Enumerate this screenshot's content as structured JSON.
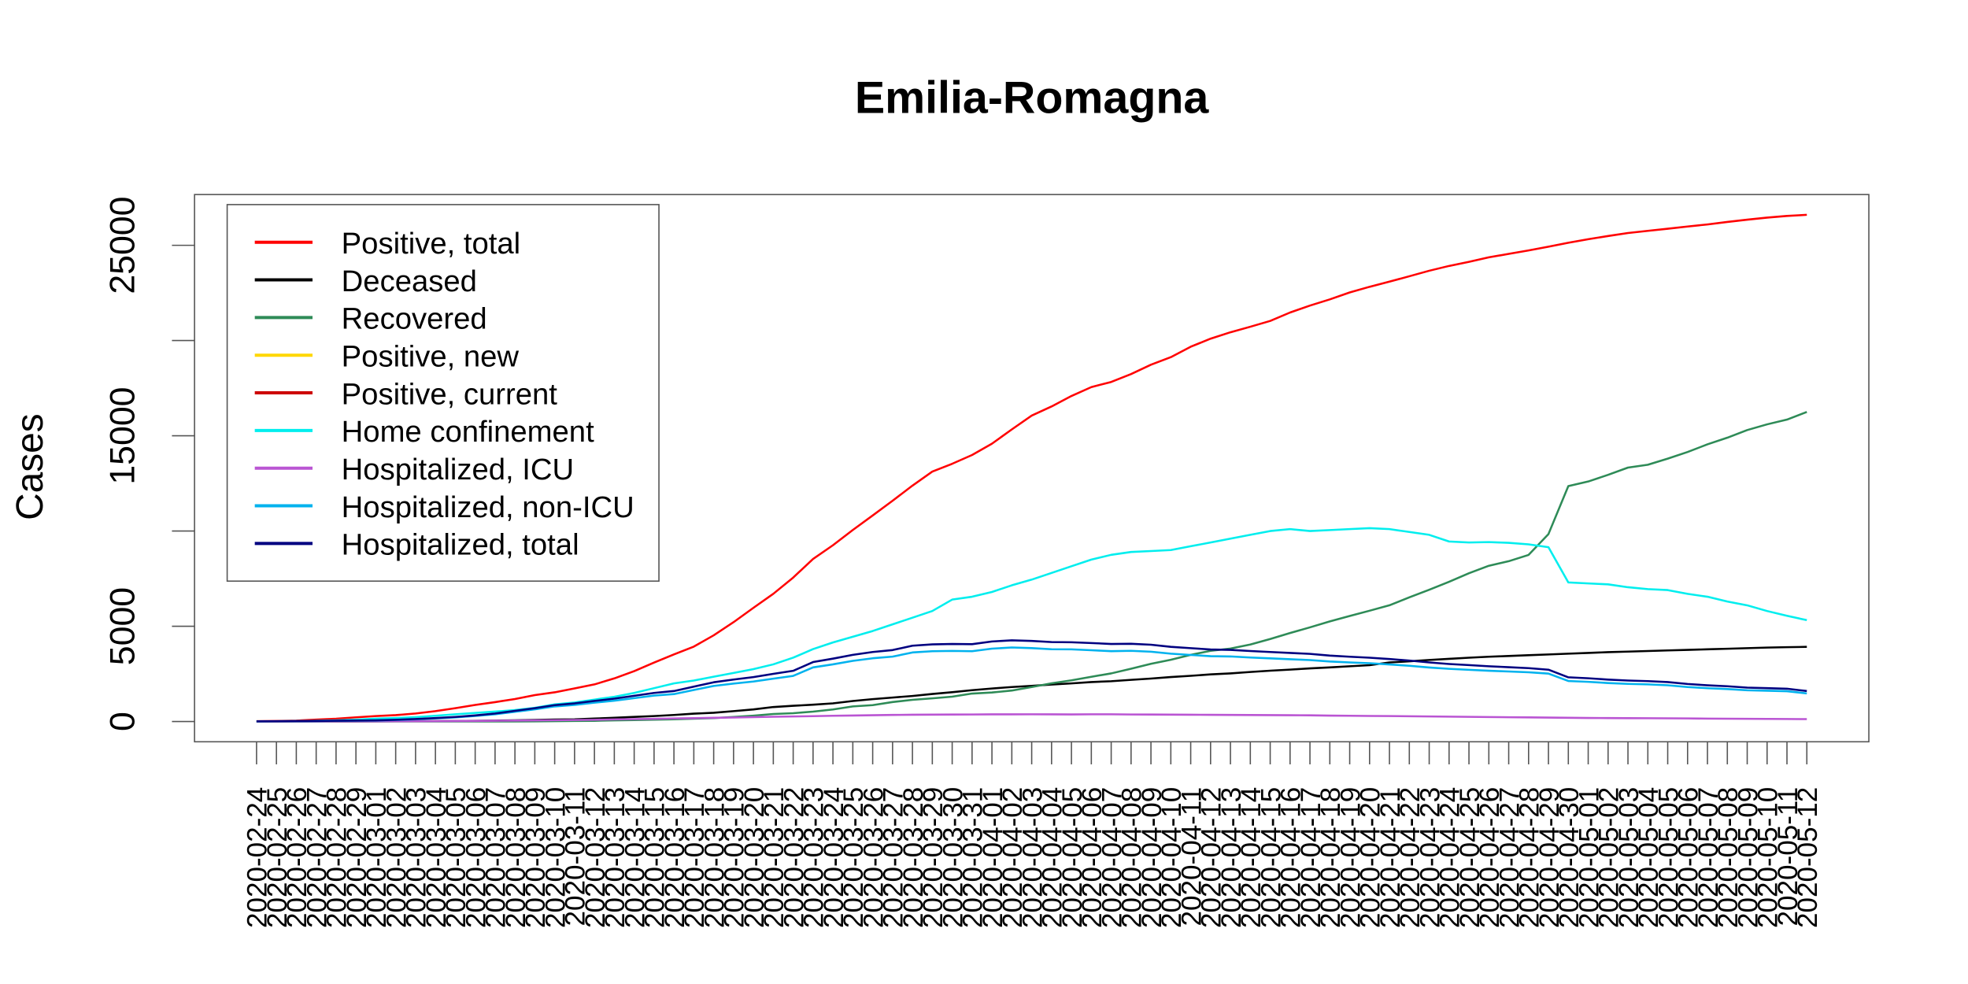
{
  "chart_data": {
    "type": "line",
    "title": "Emilia-Romagna",
    "y_label": "Cases",
    "legend": "topleft",
    "categories": [
      "2020-02-24",
      "2020-02-25",
      "2020-02-26",
      "2020-02-27",
      "2020-02-28",
      "2020-02-29",
      "2020-03-01",
      "2020-03-02",
      "2020-03-03",
      "2020-03-04",
      "2020-03-05",
      "2020-03-06",
      "2020-03-07",
      "2020-03-08",
      "2020-03-09",
      "2020-03-10",
      "2020-03-11",
      "2020-03-12",
      "2020-03-13",
      "2020-03-14",
      "2020-03-15",
      "2020-03-16",
      "2020-03-17",
      "2020-03-18",
      "2020-03-19",
      "2020-03-20",
      "2020-03-21",
      "2020-03-22",
      "2020-03-23",
      "2020-03-24",
      "2020-03-25",
      "2020-03-26",
      "2020-03-27",
      "2020-03-28",
      "2020-03-29",
      "2020-03-30",
      "2020-03-31",
      "2020-04-01",
      "2020-04-02",
      "2020-04-03",
      "2020-04-04",
      "2020-04-05",
      "2020-04-06",
      "2020-04-07",
      "2020-04-08",
      "2020-04-09",
      "2020-04-10",
      "2020-04-11",
      "2020-04-12",
      "2020-04-13",
      "2020-04-14",
      "2020-04-15",
      "2020-04-16",
      "2020-04-17",
      "2020-04-18",
      "2020-04-19",
      "2020-04-20",
      "2020-04-21",
      "2020-04-22",
      "2020-04-23",
      "2020-04-24",
      "2020-04-25",
      "2020-04-26",
      "2020-04-27",
      "2020-04-28",
      "2020-04-29",
      "2020-04-30",
      "2020-05-01",
      "2020-05-02",
      "2020-05-03",
      "2020-05-04",
      "2020-05-05",
      "2020-05-06",
      "2020-05-07",
      "2020-05-08",
      "2020-05-09",
      "2020-05-10",
      "2020-05-11",
      "2020-05-12"
    ],
    "ylim": [
      -1064,
      27665
    ],
    "yticks": [
      0,
      5000,
      {
        "value": 10000
      },
      15000,
      {
        "value": 20000
      },
      25000
    ],
    "series": [
      {
        "name": "Positive, total",
        "color": "#ff0000",
        "values": [
          18,
          26,
          47,
          97,
          145,
          217,
          285,
          335,
          420,
          544,
          698,
          870,
          1017,
          1180,
          1386,
          1533,
          1739,
          1947,
          2263,
          2644,
          3093,
          3522,
          3931,
          4525,
          5214,
          5968,
          6705,
          7555,
          8535,
          9254,
          10054,
          10816,
          11588,
          12383,
          13119,
          13531,
          13991,
          14586,
          15333,
          16060,
          16540,
          17089,
          17556,
          17825,
          18241,
          18731,
          19128,
          19674,
          20098,
          20434,
          20725,
          21029,
          21472,
          21834,
          22160,
          22525,
          22821,
          23092,
          23375,
          23664,
          23917,
          24134,
          24367,
          24550,
          24732,
          24927,
          25134,
          25321,
          25488,
          25644,
          25761,
          25870,
          25986,
          26096,
          26226,
          26345,
          26454,
          26541,
          26601
        ]
      },
      {
        "name": "Deceased",
        "color": "#000000",
        "values": [
          0,
          0,
          1,
          2,
          4,
          4,
          8,
          11,
          17,
          20,
          28,
          37,
          48,
          62,
          82,
          103,
          113,
          154,
          198,
          241,
          284,
          343,
          412,
          459,
          545,
          634,
          759,
          826,
          882,
          953,
          1075,
          1176,
          1257,
          1340,
          1445,
          1538,
          1644,
          1732,
          1810,
          1871,
          1942,
          2000,
          2071,
          2116,
          2187,
          2254,
          2334,
          2400,
          2473,
          2525,
          2599,
          2666,
          2725,
          2788,
          2841,
          2898,
          2956,
          3100,
          3160,
          3230,
          3290,
          3350,
          3400,
          3440,
          3480,
          3520,
          3560,
          3600,
          3640,
          3670,
          3700,
          3730,
          3760,
          3790,
          3820,
          3850,
          3880,
          3900,
          3920
        ]
      },
      {
        "name": "Recovered",
        "color": "#2e8b57",
        "values": [
          0,
          0,
          0,
          0,
          0,
          0,
          0,
          0,
          0,
          0,
          0,
          0,
          2,
          5,
          10,
          17,
          27,
          36,
          59,
          76,
          95,
          118,
          149,
          181,
          236,
          306,
          394,
          437,
          517,
          631,
          793,
          858,
          1022,
          1139,
          1217,
          1302,
          1467,
          1522,
          1626,
          1808,
          2007,
          2161,
          2349,
          2525,
          2772,
          3028,
          3239,
          3497,
          3712,
          3827,
          4040,
          4330,
          4645,
          4943,
          5256,
          5538,
          5816,
          6102,
          6516,
          6916,
          7336,
          7784,
          8176,
          8415,
          8746,
          9840,
          12360,
          12600,
          12950,
          13330,
          13480,
          13800,
          14150,
          14550,
          14900,
          15300,
          15600,
          15850,
          16250
        ]
      },
      {
        "name": "Positive, new",
        "color": "#ffd700",
        "values": [
          null,
          null,
          null,
          null,
          null,
          null,
          null,
          null,
          null,
          null,
          null,
          null,
          null,
          null,
          null,
          null,
          null,
          null,
          null,
          null,
          null,
          null,
          null,
          null,
          null,
          null,
          null,
          null,
          null,
          null,
          null,
          null,
          null,
          null,
          null,
          null,
          null,
          null,
          null,
          null,
          null,
          null,
          null,
          null,
          null,
          null,
          null,
          null,
          null,
          null,
          null,
          null,
          null,
          null,
          null,
          null,
          null,
          null,
          null,
          null,
          null,
          null,
          null,
          null,
          null,
          null,
          null,
          null,
          null,
          null,
          null,
          null,
          null,
          null,
          null,
          null,
          null,
          null,
          null
        ]
      },
      {
        "name": "Positive, current",
        "color": "#cd0000",
        "values": [
          null,
          null,
          null,
          null,
          null,
          null,
          null,
          null,
          null,
          null,
          null,
          null,
          null,
          null,
          null,
          null,
          null,
          null,
          null,
          null,
          null,
          null,
          null,
          null,
          null,
          null,
          null,
          null,
          null,
          null,
          null,
          null,
          null,
          null,
          null,
          null,
          null,
          null,
          null,
          null,
          null,
          null,
          null,
          null,
          null,
          null,
          null,
          null,
          null,
          null,
          null,
          null,
          null,
          null,
          null,
          null,
          null,
          null,
          null,
          null,
          null,
          null,
          null,
          null,
          null,
          null,
          null,
          null,
          null,
          null,
          null,
          null,
          null,
          null,
          null,
          null,
          null,
          null,
          null
        ]
      },
      {
        "name": "Home confinement",
        "color": "#00eeee",
        "values": [
          6,
          10,
          20,
          40,
          60,
          100,
          150,
          180,
          230,
          300,
          380,
          450,
          520,
          600,
          720,
          900,
          1000,
          1150,
          1300,
          1500,
          1750,
          2000,
          2150,
          2350,
          2550,
          2750,
          3000,
          3350,
          3800,
          4150,
          4450,
          4750,
          5100,
          5450,
          5800,
          6400,
          6550,
          6800,
          7150,
          7450,
          7800,
          8150,
          8500,
          8750,
          8900,
          8950,
          9000,
          9200,
          9400,
          9600,
          9800,
          10000,
          10100,
          10000,
          10050,
          10100,
          10150,
          10100,
          9950,
          9800,
          9450,
          9400,
          9420,
          9380,
          9300,
          9150,
          7300,
          7250,
          7200,
          7050,
          6950,
          6900,
          6700,
          6550,
          6300,
          6100,
          5800,
          5550,
          5320
        ]
      },
      {
        "name": "Hospitalized, ICU",
        "color": "#ba55d3",
        "values": [
          2,
          3,
          4,
          5,
          6,
          8,
          10,
          12,
          15,
          20,
          25,
          30,
          40,
          50,
          60,
          70,
          80,
          90,
          110,
          125,
          140,
          160,
          175,
          195,
          210,
          230,
          250,
          265,
          280,
          300,
          315,
          330,
          345,
          355,
          360,
          365,
          370,
          375,
          375,
          378,
          375,
          372,
          380,
          378,
          370,
          365,
          360,
          355,
          350,
          345,
          340,
          335,
          330,
          325,
          310,
          300,
          290,
          285,
          275,
          265,
          255,
          245,
          235,
          225,
          215,
          205,
          195,
          185,
          180,
          175,
          172,
          168,
          160,
          152,
          147,
          140,
          135,
          130,
          125
        ]
      },
      {
        "name": "Hospitalized, non-ICU",
        "color": "#00b2ee",
        "values": [
          8,
          11,
          18,
          25,
          34,
          42,
          50,
          78,
          115,
          160,
          215,
          290,
          380,
          510,
          640,
          790,
          870,
          990,
          1090,
          1225,
          1360,
          1440,
          1655,
          1865,
          1990,
          2100,
          2250,
          2395,
          2840,
          3000,
          3185,
          3320,
          3405,
          3625,
          3690,
          3705,
          3690,
          3825,
          3885,
          3852,
          3795,
          3788,
          3740,
          3692,
          3710,
          3665,
          3560,
          3495,
          3430,
          3415,
          3360,
          3315,
          3270,
          3225,
          3150,
          3100,
          3060,
          2995,
          2925,
          2835,
          2765,
          2715,
          2665,
          2625,
          2585,
          2515,
          2125,
          2085,
          2020,
          1975,
          1948,
          1902,
          1810,
          1748,
          1703,
          1640,
          1615,
          1590,
          1475
        ]
      },
      {
        "name": "Hospitalized, total",
        "color": "#000080",
        "values": [
          10,
          14,
          22,
          30,
          40,
          50,
          60,
          90,
          130,
          180,
          240,
          320,
          420,
          560,
          700,
          860,
          950,
          1080,
          1200,
          1350,
          1500,
          1600,
          1830,
          2060,
          2200,
          2330,
          2500,
          2660,
          3120,
          3300,
          3500,
          3650,
          3750,
          3980,
          4050,
          4070,
          4060,
          4200,
          4260,
          4230,
          4170,
          4160,
          4120,
          4070,
          4080,
          4030,
          3920,
          3850,
          3780,
          3760,
          3700,
          3650,
          3600,
          3550,
          3460,
          3400,
          3350,
          3280,
          3200,
          3100,
          3020,
          2960,
          2900,
          2850,
          2800,
          2720,
          2320,
          2270,
          2200,
          2150,
          2120,
          2070,
          1970,
          1900,
          1850,
          1780,
          1750,
          1720,
          1600
        ]
      }
    ]
  }
}
